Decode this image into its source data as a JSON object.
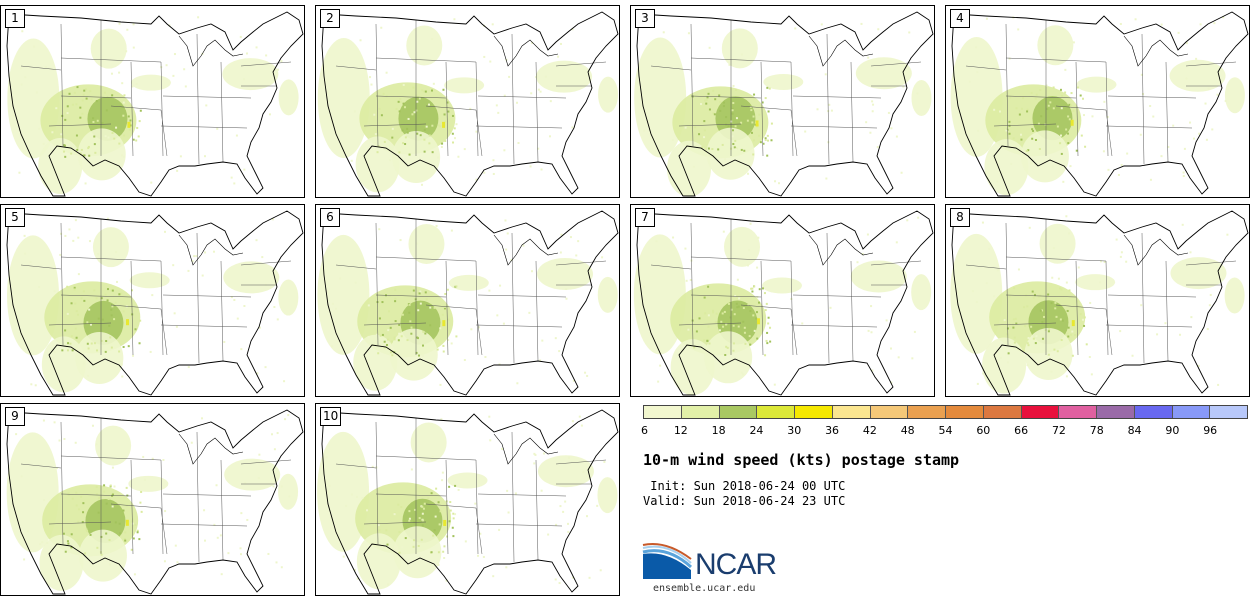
{
  "title": "10-m wind speed (kts) postage stamp",
  "init": " Init: Sun 2018-06-24 00 UTC",
  "valid": "Valid: Sun 2018-06-24 23 UTC",
  "url": "ensemble.ucar.edu",
  "logo_text": "NCAR",
  "members": [
    "1",
    "2",
    "3",
    "4",
    "5",
    "6",
    "7",
    "8",
    "9",
    "10"
  ],
  "colorbar": {
    "ticks": [
      "6",
      "12",
      "18",
      "24",
      "30",
      "36",
      "42",
      "48",
      "54",
      "60",
      "66",
      "72",
      "78",
      "84",
      "90",
      "96"
    ],
    "colors": [
      "#f2f7cf",
      "#e2f0a8",
      "#a9c862",
      "#dce838",
      "#f5e800",
      "#fbe690",
      "#f5c878",
      "#eaa050",
      "#e48a3c",
      "#dc7840",
      "#e8103c",
      "#e060a0",
      "#9a6aa8",
      "#6868f0",
      "#8899f8",
      "#b8c8fa"
    ]
  },
  "map": {
    "land_line_color": "#000000",
    "fill_light": "#eef6cc",
    "fill_mid": "#dbeba0",
    "fill_dark": "#a2c25c",
    "fill_yellow": "#e8e830"
  }
}
